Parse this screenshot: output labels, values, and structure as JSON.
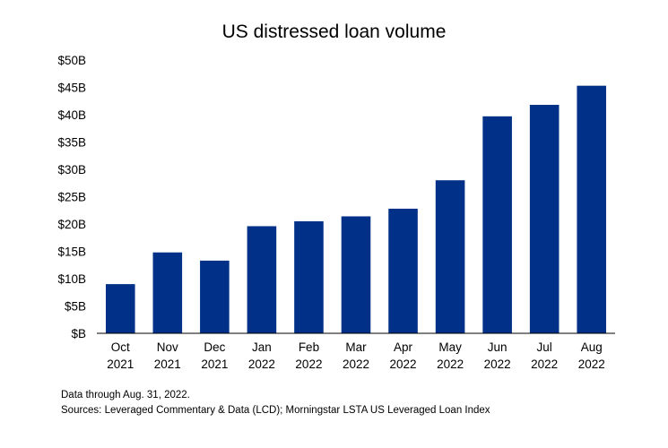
{
  "chart_data": {
    "type": "bar",
    "title": "US distressed loan volume",
    "categories": [
      [
        "Oct",
        "2021"
      ],
      [
        "Nov",
        "2021"
      ],
      [
        "Dec",
        "2021"
      ],
      [
        "Jan",
        "2022"
      ],
      [
        "Feb",
        "2022"
      ],
      [
        "Mar",
        "2022"
      ],
      [
        "Apr",
        "2022"
      ],
      [
        "May",
        "2022"
      ],
      [
        "Jun",
        "2022"
      ],
      [
        "Jul",
        "2022"
      ],
      [
        "Aug",
        "2022"
      ]
    ],
    "values": [
      9.0,
      14.8,
      13.3,
      19.6,
      20.5,
      21.4,
      22.8,
      28.0,
      39.7,
      41.8,
      45.3
    ],
    "value_unit": "billion USD",
    "ylim": [
      0,
      50
    ],
    "yticks": [
      0,
      5,
      10,
      15,
      20,
      25,
      30,
      35,
      40,
      45,
      50
    ],
    "ytick_labels": [
      "$B",
      "$5B",
      "$10B",
      "$15B",
      "$20B",
      "$25B",
      "$30B",
      "$35B",
      "$40B",
      "$45B",
      "$50B"
    ],
    "xlabel": "",
    "ylabel": "",
    "grid": false,
    "legend": "none",
    "bar_color": "#003087"
  },
  "footnotes": {
    "note": "Data through Aug. 31, 2022.",
    "source": "Sources: Leveraged Commentary & Data (LCD); Morningstar LSTA US  Leveraged Loan Index"
  }
}
